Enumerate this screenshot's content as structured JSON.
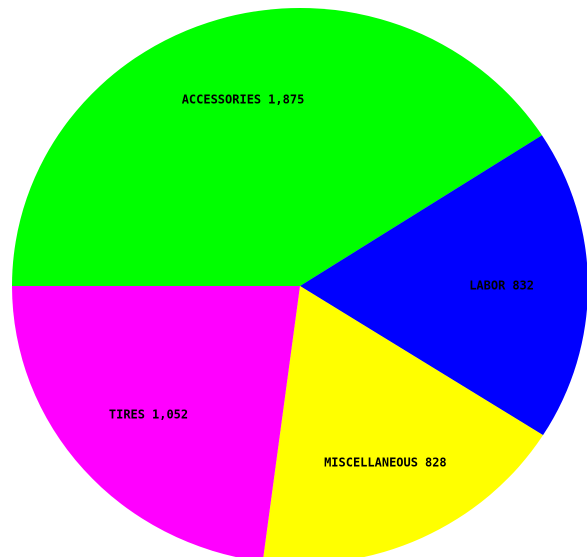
{
  "chart_data": {
    "type": "pie",
    "categories": [
      "ACCESSORIES",
      "LABOR",
      "MISCELLANEOUS",
      "TIRES"
    ],
    "values": [
      1875,
      832,
      828,
      1052
    ],
    "value_labels": [
      "1,875",
      "832",
      "828",
      "1,052"
    ],
    "colors": [
      "#00ff00",
      "#0000ff",
      "#ffff00",
      "#ff00ff"
    ]
  }
}
